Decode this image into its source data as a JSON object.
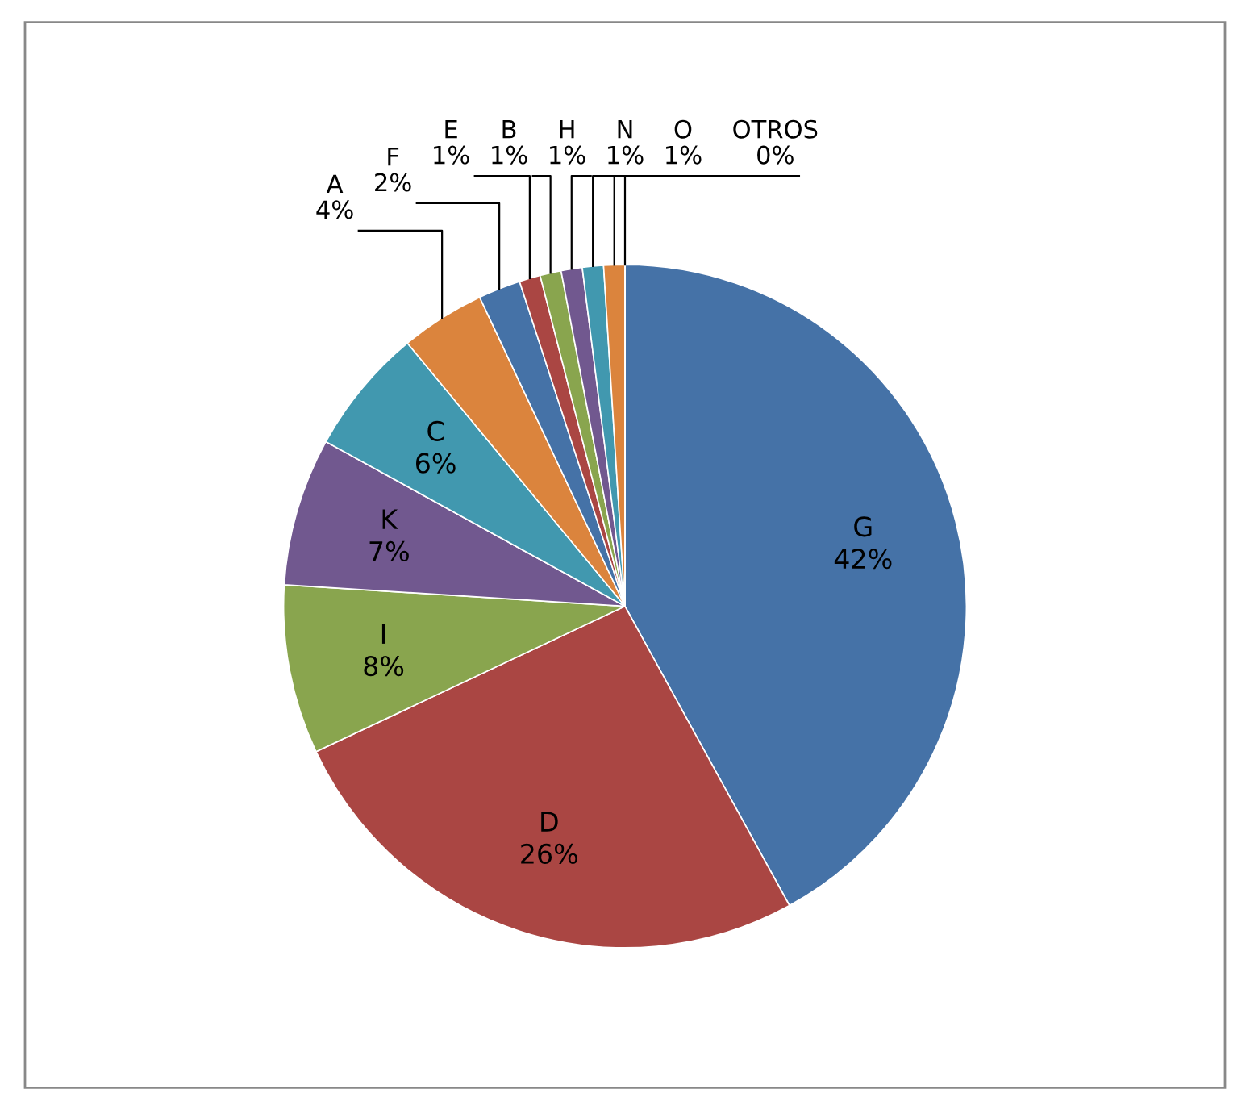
{
  "chart_data": {
    "type": "pie",
    "categories": [
      "G",
      "D",
      "I",
      "K",
      "C",
      "A",
      "F",
      "E",
      "B",
      "H",
      "N",
      "O",
      "OTROS"
    ],
    "values": [
      42,
      26,
      8,
      7,
      6,
      4,
      2,
      1,
      1,
      1,
      1,
      1,
      0
    ],
    "colors": [
      "#4572a7",
      "#aa4643",
      "#89a54e",
      "#71588f",
      "#4198af",
      "#db843d",
      "#4572a7",
      "#aa4643",
      "#89a54e",
      "#71588f",
      "#4198af",
      "#db843d",
      "#93a9cf"
    ],
    "value_labels": [
      "42%",
      "26%",
      "8%",
      "7%",
      "6%",
      "4%",
      "2%",
      "1%",
      "1%",
      "1%",
      "1%",
      "1%",
      "0%"
    ],
    "legend": false
  }
}
